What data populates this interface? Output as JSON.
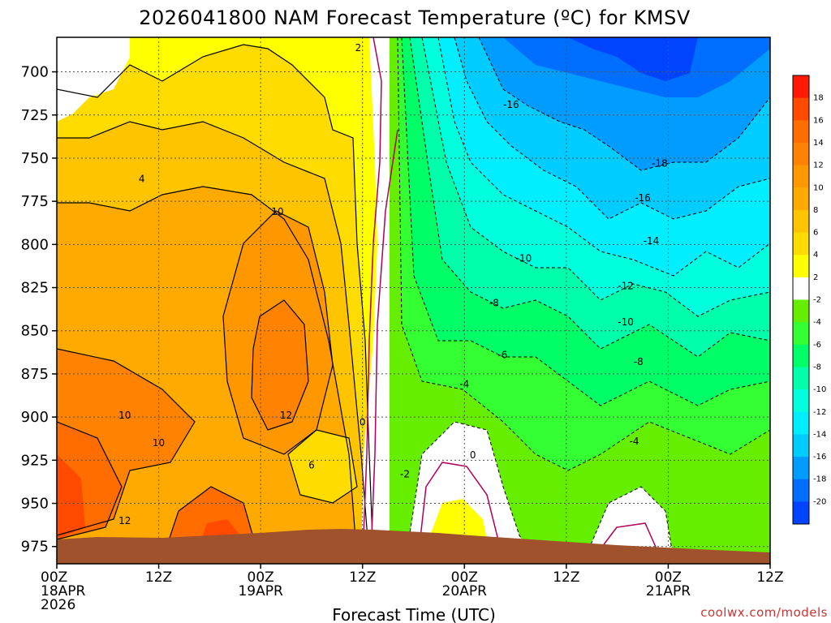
{
  "chart_data": {
    "type": "contour",
    "title": "2026041800 NAM Forecast Temperature (ºC) for KMSV",
    "xlabel": "Forecast Time (UTC)",
    "credit": "coolwx.com/models",
    "y_ticks": [
      "700",
      "725",
      "750",
      "775",
      "800",
      "825",
      "850",
      "875",
      "900",
      "925",
      "950",
      "975"
    ],
    "y_values": [
      700,
      725,
      750,
      775,
      800,
      825,
      850,
      875,
      900,
      925,
      950,
      975
    ],
    "ylim": [
      680,
      985
    ],
    "xlim": [
      0,
      84
    ],
    "x_ticks": [
      {
        "hour": 0,
        "line1": "00Z",
        "line2": "18APR",
        "line3": "2026"
      },
      {
        "hour": 12,
        "line1": "12Z",
        "line2": "",
        "line3": ""
      },
      {
        "hour": 24,
        "line1": "00Z",
        "line2": "19APR",
        "line3": ""
      },
      {
        "hour": 36,
        "line1": "12Z",
        "line2": "",
        "line3": ""
      },
      {
        "hour": 48,
        "line1": "00Z",
        "line2": "20APR",
        "line3": ""
      },
      {
        "hour": 60,
        "line1": "12Z",
        "line2": "",
        "line3": ""
      },
      {
        "hour": 72,
        "line1": "00Z",
        "line2": "21APR",
        "line3": ""
      },
      {
        "hour": 84,
        "line1": "12Z",
        "line2": "",
        "line3": ""
      }
    ],
    "colorbar": [
      {
        "label": "18",
        "color": "#ff1a00"
      },
      {
        "label": "16",
        "color": "#ff4a00"
      },
      {
        "label": "14",
        "color": "#ff6c00"
      },
      {
        "label": "12",
        "color": "#ff8200"
      },
      {
        "label": "10",
        "color": "#ff9800"
      },
      {
        "label": "8",
        "color": "#ffaa00"
      },
      {
        "label": "6",
        "color": "#ffc400"
      },
      {
        "label": "4",
        "color": "#ffdc00"
      },
      {
        "label": "2",
        "color": "#ffff00"
      },
      {
        "label": "-2",
        "color": "#ffffff"
      },
      {
        "label": "-4",
        "color": "#66ee00"
      },
      {
        "label": "-6",
        "color": "#33ff33"
      },
      {
        "label": "-8",
        "color": "#00ff66"
      },
      {
        "label": "-10",
        "color": "#00ffaa"
      },
      {
        "label": "-12",
        "color": "#00ffdd"
      },
      {
        "label": "-14",
        "color": "#00eeff"
      },
      {
        "label": "-16",
        "color": "#00ccff"
      },
      {
        "label": "-18",
        "color": "#009cff"
      },
      {
        "label": "-20",
        "color": "#006eff"
      },
      {
        "label": "",
        "color": "#0044ff"
      }
    ],
    "contour_labels": [
      {
        "text": "2",
        "hour": 35.5,
        "p": 686
      },
      {
        "text": "4",
        "hour": 10,
        "p": 762
      },
      {
        "text": "10",
        "hour": 26,
        "p": 781
      },
      {
        "text": "10",
        "hour": 8,
        "p": 899
      },
      {
        "text": "10",
        "hour": 12,
        "p": 915
      },
      {
        "text": "12",
        "hour": 27,
        "p": 899
      },
      {
        "text": "6",
        "hour": 30,
        "p": 928
      },
      {
        "text": "12",
        "hour": 8,
        "p": 960
      },
      {
        "text": "0",
        "hour": 36,
        "p": 903
      },
      {
        "text": "-2",
        "hour": 41,
        "p": 933
      },
      {
        "text": "0",
        "hour": 49,
        "p": 922
      },
      {
        "text": "-16",
        "hour": 53.5,
        "p": 719
      },
      {
        "text": "-18",
        "hour": 71,
        "p": 753
      },
      {
        "text": "-16",
        "hour": 69,
        "p": 773
      },
      {
        "text": "-14",
        "hour": 70,
        "p": 798
      },
      {
        "text": "-10",
        "hour": 55,
        "p": 808
      },
      {
        "text": "-12",
        "hour": 67,
        "p": 824
      },
      {
        "text": "-8",
        "hour": 51.5,
        "p": 834
      },
      {
        "text": "-10",
        "hour": 67,
        "p": 845
      },
      {
        "text": "-6",
        "hour": 52.5,
        "p": 864
      },
      {
        "text": "-8",
        "hour": 68.5,
        "p": 868
      },
      {
        "text": "-4",
        "hour": 48,
        "p": 881
      },
      {
        "text": "-4",
        "hour": 68,
        "p": 914
      }
    ]
  },
  "colors": {
    "ground": "#a0522d",
    "freezing_line": "#b0005a",
    "grid": "#555555"
  }
}
